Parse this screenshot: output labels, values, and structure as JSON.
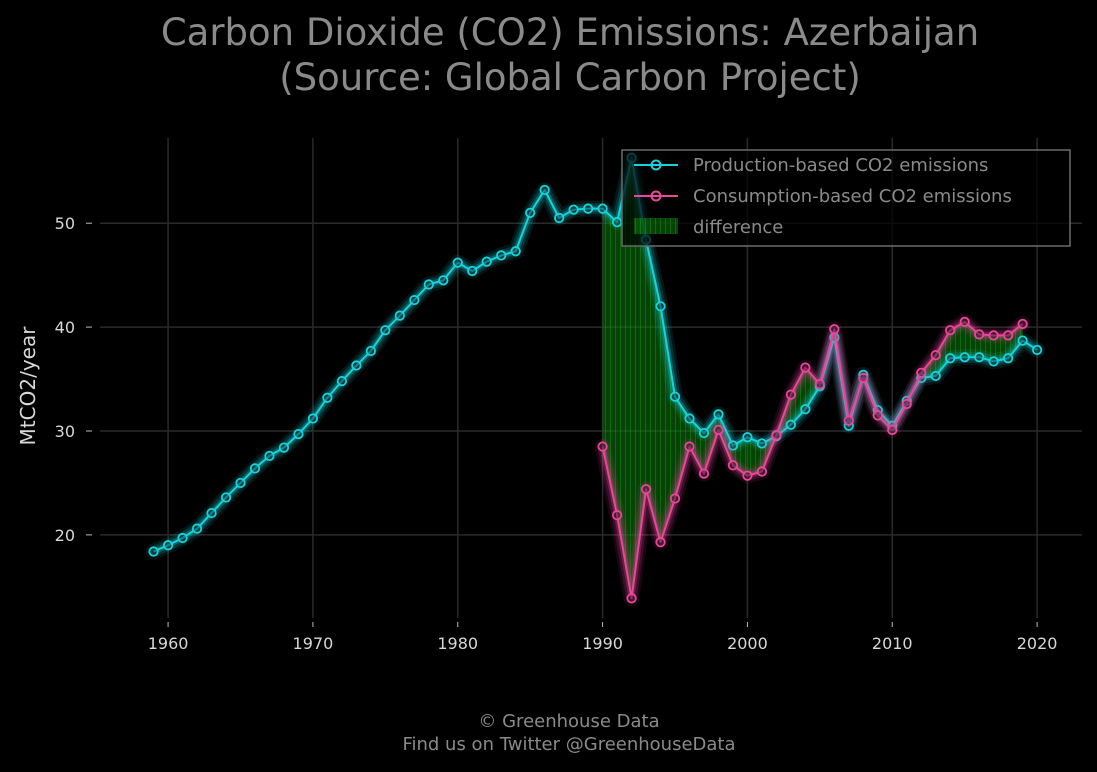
{
  "title_line1": "Carbon Dioxide (CO2) Emissions: Azerbaijan",
  "title_line2": "(Source: Global Carbon Project)",
  "footer_line1": "© Greenhouse Data",
  "footer_line2": "Find us on Twitter @GreenhouseData",
  "colors": {
    "background": "#000000",
    "production": "#19d3dc",
    "consumption": "#e8479a",
    "difference": "#0a8a0a",
    "grid": "#2a2a2a",
    "text": "#8a8a8a",
    "tick_text": "#d8d8d8"
  },
  "chart_data": {
    "type": "line",
    "title": "Carbon Dioxide (CO2) Emissions: Azerbaijan (Source: Global Carbon Project)",
    "xlabel": "",
    "ylabel": "MtCO2/year",
    "xlim": [
      1955.3,
      2023.1
    ],
    "ylim": [
      12,
      58.2
    ],
    "xticks": [
      1960,
      1970,
      1980,
      1990,
      2000,
      2010,
      2020
    ],
    "yticks": [
      20,
      30,
      40,
      50
    ],
    "grid": true,
    "legend_position": "top-right",
    "legend_entries": [
      "Production-based CO2 emissions",
      "Consumption-based CO2 emissions",
      "difference"
    ],
    "series": [
      {
        "name": "Production-based CO2 emissions",
        "x": [
          1959,
          1960,
          1961,
          1962,
          1963,
          1964,
          1965,
          1966,
          1967,
          1968,
          1969,
          1970,
          1971,
          1972,
          1973,
          1974,
          1975,
          1976,
          1977,
          1978,
          1979,
          1980,
          1981,
          1982,
          1983,
          1984,
          1985,
          1986,
          1987,
          1988,
          1989,
          1990,
          1991,
          1992,
          1993,
          1994,
          1995,
          1996,
          1997,
          1998,
          1999,
          2000,
          2001,
          2002,
          2003,
          2004,
          2005,
          2006,
          2007,
          2008,
          2009,
          2010,
          2011,
          2012,
          2013,
          2014,
          2015,
          2016,
          2017,
          2018,
          2019,
          2020
        ],
        "y": [
          18.4,
          19.0,
          19.7,
          20.6,
          22.1,
          23.6,
          25.0,
          26.4,
          27.6,
          28.4,
          29.7,
          31.2,
          33.2,
          34.8,
          36.3,
          37.7,
          39.7,
          41.1,
          42.6,
          44.1,
          44.5,
          46.2,
          45.4,
          46.3,
          46.9,
          47.3,
          51.0,
          53.2,
          50.5,
          51.3,
          51.4,
          51.4,
          50.1,
          56.3,
          48.4,
          42.0,
          33.3,
          31.2,
          29.8,
          31.6,
          28.6,
          29.4,
          28.8,
          29.5,
          30.6,
          32.1,
          34.3,
          39.0,
          30.5,
          35.4,
          32.0,
          30.5,
          32.9,
          35.1,
          35.3,
          37.0,
          37.1,
          37.1,
          36.7,
          37.0,
          38.7,
          37.8
        ]
      },
      {
        "name": "Consumption-based CO2 emissions",
        "x": [
          1990,
          1991,
          1992,
          1993,
          1994,
          1995,
          1996,
          1997,
          1998,
          1999,
          2000,
          2001,
          2002,
          2003,
          2004,
          2005,
          2006,
          2007,
          2008,
          2009,
          2010,
          2011,
          2012,
          2013,
          2014,
          2015,
          2016,
          2017,
          2018,
          2019
        ],
        "y": [
          28.5,
          21.9,
          13.9,
          24.4,
          19.3,
          23.5,
          28.5,
          25.9,
          30.1,
          26.7,
          25.7,
          26.1,
          29.6,
          33.5,
          36.1,
          34.5,
          39.8,
          31.0,
          35.1,
          31.5,
          30.1,
          32.6,
          35.6,
          37.3,
          39.7,
          40.5,
          39.3,
          39.2,
          39.2,
          40.3
        ]
      }
    ]
  }
}
